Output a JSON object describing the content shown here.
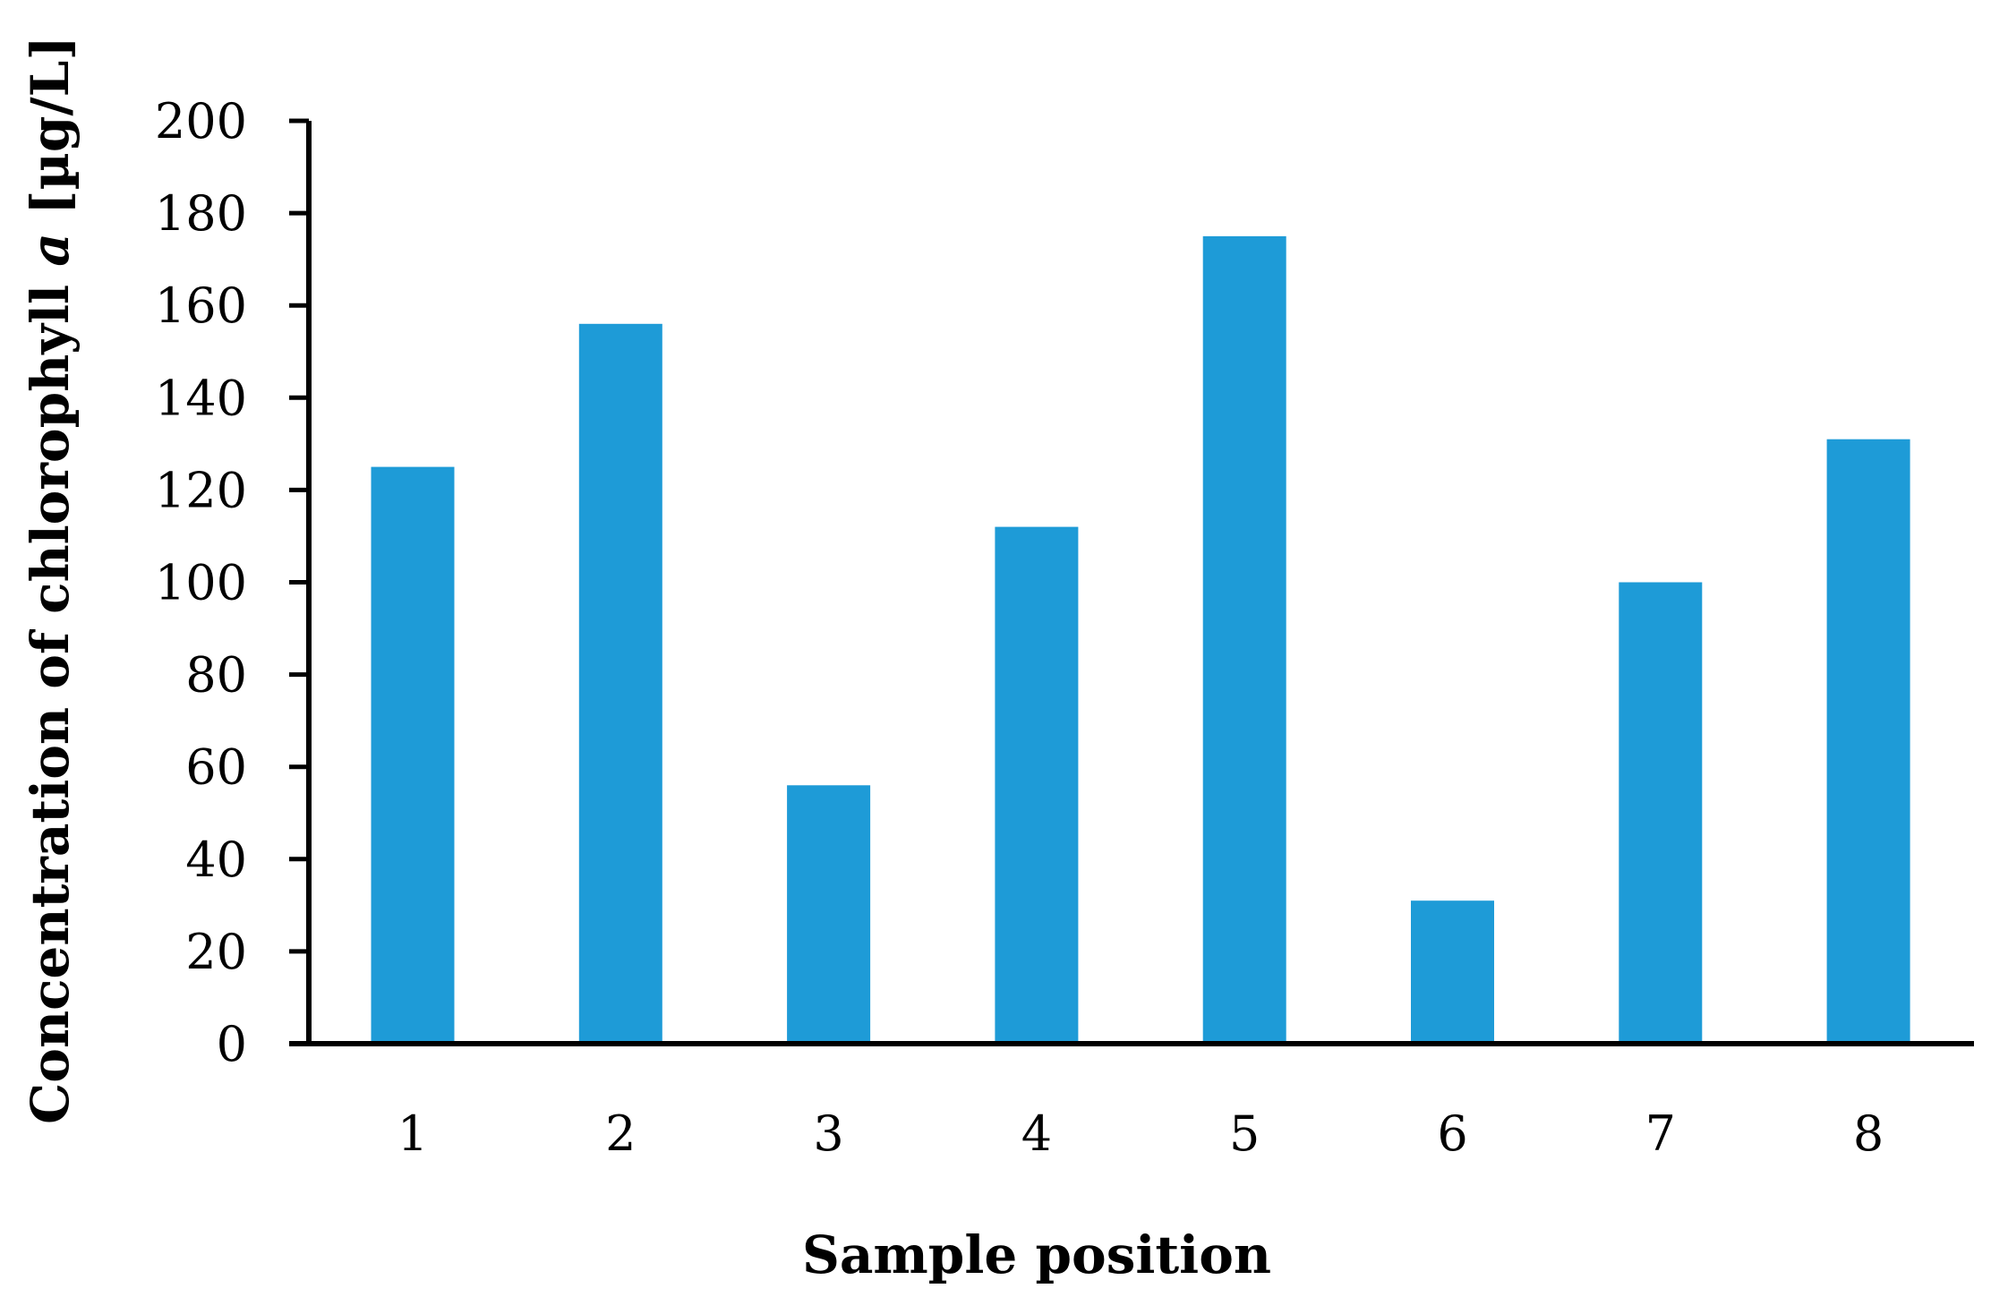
{
  "chart_data": {
    "type": "bar",
    "categories": [
      "1",
      "2",
      "3",
      "4",
      "5",
      "6",
      "7",
      "8"
    ],
    "series": [
      {
        "values": [
          125,
          156,
          56,
          112,
          175,
          31,
          100,
          131
        ],
        "color": "#1e9bd7"
      }
    ],
    "xlabel": "Sample position",
    "ylabel_prefix": "Concentration of chlorophyll ",
    "ylabel_italic": "a",
    "ylabel_suffix": " [µg/L]",
    "ylim": [
      0,
      200
    ],
    "yticks": [
      0,
      20,
      40,
      60,
      80,
      100,
      120,
      140,
      160,
      180,
      200
    ],
    "grid": false,
    "legend": "none"
  }
}
